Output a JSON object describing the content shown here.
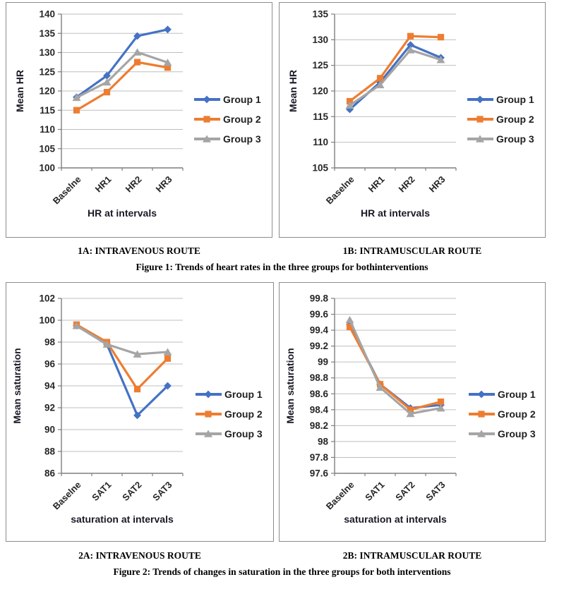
{
  "colors": {
    "series_blue": "#4472C4",
    "series_orange": "#ED7D31",
    "series_gray": "#A5A5A5",
    "gridline": "#BFBFBF",
    "axis_line": "#7F7F7F",
    "tick_text": "#262626",
    "axis_title_text": "#1A1A26",
    "legend_text": "#1F1F1F",
    "panel_border": "#8C8C8C"
  },
  "chart_data": [
    {
      "id": "1a",
      "type": "line",
      "title": "1A: INTRAVENOUS ROUTE",
      "categories": [
        "Baselne",
        "HR1",
        "HR2",
        "HR3"
      ],
      "series": [
        {
          "name": "Group 1",
          "color": "#4472C4",
          "marker": "diamond",
          "values": [
            118.4,
            124.0,
            134.3,
            136.0
          ]
        },
        {
          "name": "Group 2",
          "color": "#ED7D31",
          "marker": "square",
          "values": [
            115.0,
            119.7,
            127.5,
            126.1
          ]
        },
        {
          "name": "Group 3",
          "color": "#A5A5A5",
          "marker": "triangle",
          "values": [
            118.3,
            122.3,
            130.1,
            127.4
          ]
        }
      ],
      "xlabel": "HR at intervals",
      "ylabel": "Mean HR",
      "ylim": [
        100,
        140
      ],
      "yticks": [
        100,
        105,
        110,
        115,
        120,
        125,
        130,
        135,
        140
      ],
      "ytick_labels": [
        "100",
        "105",
        "110",
        "115",
        "120",
        "125",
        "130",
        "135",
        "140"
      ],
      "grid": true,
      "legend_position": "right"
    },
    {
      "id": "1b",
      "type": "line",
      "title": "1B: INTRAMUSCULAR ROUTE",
      "categories": [
        "Baselne",
        "HR1",
        "HR2",
        "HR3"
      ],
      "series": [
        {
          "name": "Group 1",
          "color": "#4472C4",
          "marker": "diamond",
          "values": [
            116.4,
            121.7,
            129.0,
            126.5
          ]
        },
        {
          "name": "Group 2",
          "color": "#ED7D31",
          "marker": "square",
          "values": [
            118.0,
            122.5,
            130.7,
            130.5
          ]
        },
        {
          "name": "Group 3",
          "color": "#A5A5A5",
          "marker": "triangle",
          "values": [
            117.2,
            121.2,
            128.0,
            126.1
          ]
        }
      ],
      "xlabel": "HR at intervals",
      "ylabel": "Mean HR",
      "ylim": [
        105,
        135
      ],
      "yticks": [
        105,
        110,
        115,
        120,
        125,
        130,
        135
      ],
      "ytick_labels": [
        "105",
        "110",
        "115",
        "120",
        "125",
        "130",
        "135"
      ],
      "grid": true,
      "legend_position": "right"
    },
    {
      "id": "2a",
      "type": "line",
      "title": "2A: INTRAVENOUS ROUTE",
      "categories": [
        "Baselne",
        "SAT1",
        "SAT2",
        "SAT3"
      ],
      "series": [
        {
          "name": "Group 1",
          "color": "#4472C4",
          "marker": "diamond",
          "values": [
            99.5,
            97.8,
            91.3,
            94.0
          ]
        },
        {
          "name": "Group 2",
          "color": "#ED7D31",
          "marker": "square",
          "values": [
            99.6,
            98.0,
            93.7,
            96.5
          ]
        },
        {
          "name": "Group 3",
          "color": "#A5A5A5",
          "marker": "triangle",
          "values": [
            99.5,
            97.8,
            96.9,
            97.1
          ]
        }
      ],
      "xlabel": "saturation at intervals",
      "ylabel": "Mean saturation",
      "ylim": [
        86,
        102
      ],
      "yticks": [
        86,
        88,
        90,
        92,
        94,
        96,
        98,
        100,
        102
      ],
      "ytick_labels": [
        "86",
        "88",
        "90",
        "92",
        "94",
        "96",
        "98",
        "100",
        "102"
      ],
      "grid": true,
      "legend_position": "right"
    },
    {
      "id": "2b",
      "type": "line",
      "title": "2B: INTRAMUSCULAR ROUTE",
      "categories": [
        "Baselne",
        "SAT1",
        "SAT2",
        "SAT3"
      ],
      "series": [
        {
          "name": "Group 1",
          "color": "#4472C4",
          "marker": "diamond",
          "values": [
            99.47,
            98.72,
            98.42,
            98.46
          ]
        },
        {
          "name": "Group 2",
          "color": "#ED7D31",
          "marker": "square",
          "values": [
            99.44,
            98.72,
            98.4,
            98.5
          ]
        },
        {
          "name": "Group 3",
          "color": "#A5A5A5",
          "marker": "triangle",
          "values": [
            99.53,
            98.68,
            98.35,
            98.42
          ]
        }
      ],
      "xlabel": "saturation at intervals",
      "ylabel": "Mean saturation",
      "ylim": [
        97.6,
        99.8
      ],
      "yticks": [
        97.6,
        97.8,
        98.0,
        98.2,
        98.4,
        98.6,
        98.8,
        99.0,
        99.2,
        99.4,
        99.6,
        99.8
      ],
      "ytick_labels": [
        "97.6",
        "97.8",
        "98",
        "98.2",
        "98.4",
        "98.6",
        "98.8",
        "99",
        "99.2",
        "99.4",
        "99.6",
        "99.8"
      ],
      "grid": true,
      "legend_position": "right"
    }
  ],
  "figure_captions": {
    "fig1": "Figure 1: Trends of heart rates in the three groups for bothinterventions",
    "fig2": "Figure 2: Trends of changes in saturation in the three groups for both interventions"
  }
}
